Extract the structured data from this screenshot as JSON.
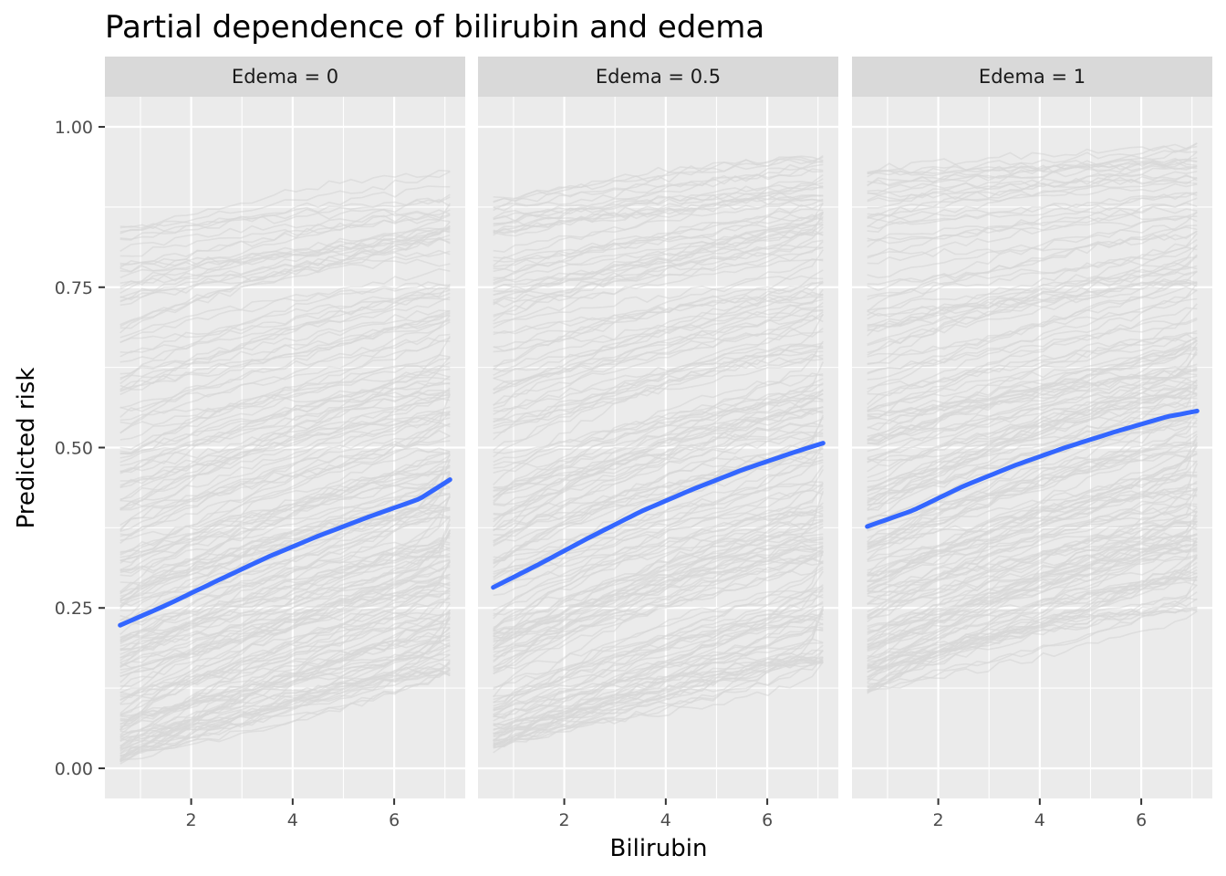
{
  "chart_data": {
    "type": "line",
    "title": "Partial dependence of bilirubin and edema",
    "xlabel": "Bilirubin",
    "ylabel": "Predicted risk",
    "xlim": [
      0.3,
      7.4
    ],
    "ylim": [
      -0.047,
      1.047
    ],
    "x_ticks": [
      2,
      4,
      6
    ],
    "x_tick_labels": [
      "2",
      "4",
      "6"
    ],
    "x_minor_ticks": [
      1,
      3,
      5,
      7
    ],
    "y_ticks": [
      0,
      0.25,
      0.5,
      0.75,
      1
    ],
    "y_tick_labels": [
      "0.00",
      "0.25",
      "0.50",
      "0.75",
      "1.00"
    ],
    "y_minor_ticks": [
      0.125,
      0.375,
      0.625,
      0.875
    ],
    "grid": true,
    "legend": "none",
    "colors": {
      "panel_background": "#ebebeb",
      "strip_background": "#d9d9d9",
      "gridline": "#ffffff",
      "ice_lines": "#c8c8c8",
      "mean_line": "#3366ff"
    },
    "x": [
      0.6,
      1.5,
      2.5,
      3.5,
      4.5,
      5.5,
      6.5,
      7.1
    ],
    "panels": [
      {
        "strip_label": "Edema = 0",
        "mean_curve": [
          0.223,
          0.254,
          0.292,
          0.329,
          0.362,
          0.392,
          0.42,
          0.45
        ],
        "ice_start_range": [
          0.01,
          0.87
        ],
        "ice_end_range": [
          0.15,
          0.93
        ]
      },
      {
        "strip_label": "Edema = 0.5",
        "mean_curve": [
          0.282,
          0.318,
          0.36,
          0.4,
          0.434,
          0.465,
          0.492,
          0.507
        ],
        "ice_start_range": [
          0.03,
          0.89
        ],
        "ice_end_range": [
          0.17,
          0.95
        ]
      },
      {
        "strip_label": "Edema = 1",
        "mean_curve": [
          0.377,
          0.402,
          0.44,
          0.472,
          0.5,
          0.525,
          0.548,
          0.557
        ],
        "ice_start_range": [
          0.12,
          0.94
        ],
        "ice_end_range": [
          0.25,
          0.97
        ]
      }
    ]
  }
}
